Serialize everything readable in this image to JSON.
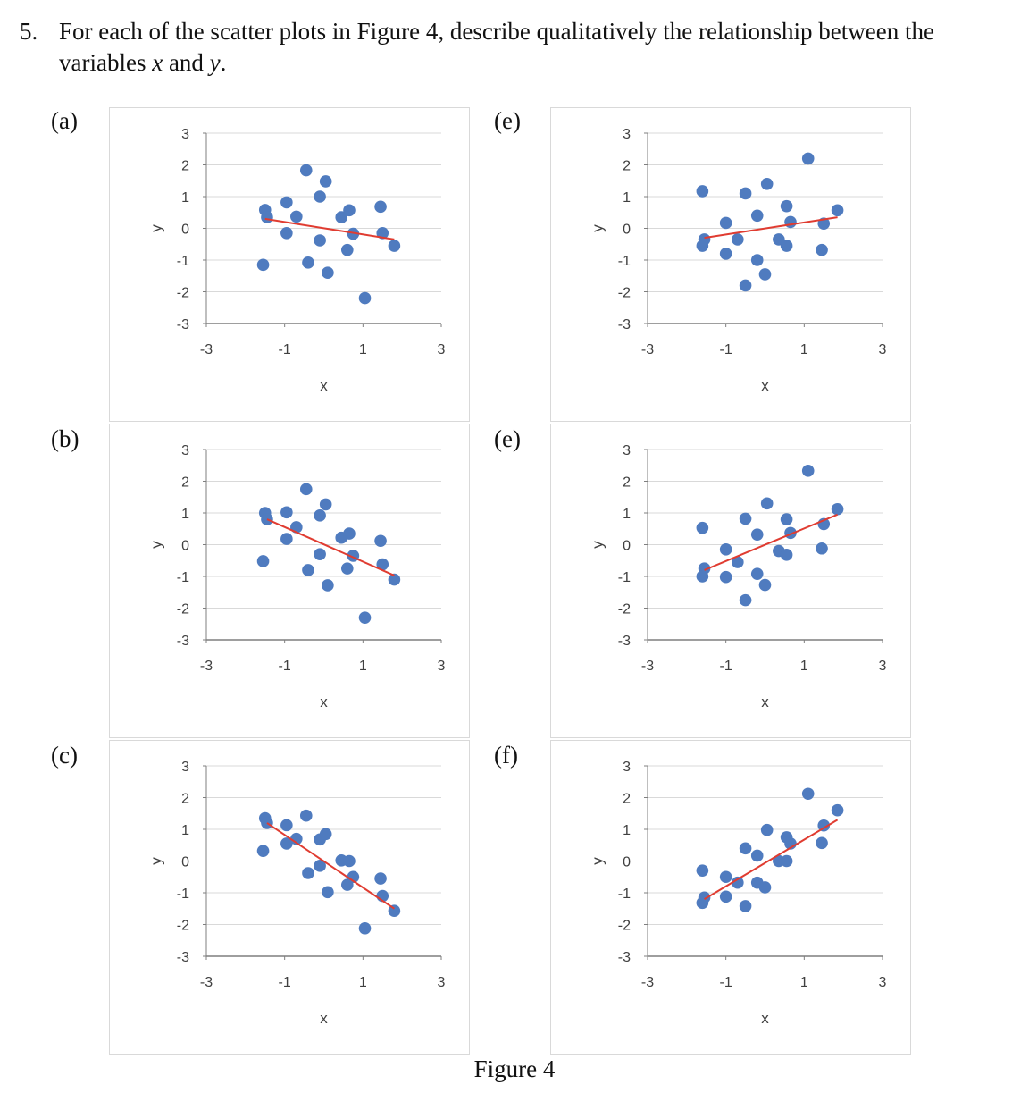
{
  "question": {
    "number": "5.",
    "text_before": "For each of the scatter plots in Figure 4, describe qualitatively the relationship between the variables ",
    "var_x": "x",
    "text_and": " and ",
    "var_y": "y",
    "text_end": "."
  },
  "caption": "Figure 4",
  "colors": {
    "point": "#4f7bbf",
    "trendline": "#e03c31",
    "grid": "#d9d9d9",
    "axis": "#7f7f7f",
    "tick_text": "#404040"
  },
  "chart_data": [
    {
      "panel_label": "(a)",
      "type": "scatter",
      "xlabel": "x",
      "ylabel": "y",
      "xlim": [
        -3,
        3
      ],
      "ylim": [
        -3,
        3
      ],
      "x_ticks": [
        -3,
        -1,
        1,
        3
      ],
      "y_ticks": [
        3,
        2,
        1,
        0,
        -1,
        -2,
        -3
      ],
      "grid": "horizontal",
      "trendline": {
        "type": "linear",
        "x": [
          -1.5,
          1.8
        ],
        "y": [
          0.3,
          -0.35
        ]
      },
      "points": [
        {
          "x": -1.55,
          "y": -1.15
        },
        {
          "x": -1.5,
          "y": 0.58
        },
        {
          "x": -1.45,
          "y": 0.35
        },
        {
          "x": -0.95,
          "y": 0.82
        },
        {
          "x": -0.95,
          "y": -0.15
        },
        {
          "x": -0.7,
          "y": 0.37
        },
        {
          "x": -0.45,
          "y": 1.83
        },
        {
          "x": -0.4,
          "y": -1.08
        },
        {
          "x": -0.1,
          "y": 1.0
        },
        {
          "x": -0.1,
          "y": -0.38
        },
        {
          "x": 0.05,
          "y": 1.48
        },
        {
          "x": 0.1,
          "y": -1.4
        },
        {
          "x": 0.45,
          "y": 0.35
        },
        {
          "x": 0.65,
          "y": 0.57
        },
        {
          "x": 0.6,
          "y": -0.68
        },
        {
          "x": 0.75,
          "y": -0.17
        },
        {
          "x": 1.05,
          "y": -2.2
        },
        {
          "x": 1.45,
          "y": 0.68
        },
        {
          "x": 1.5,
          "y": -0.15
        },
        {
          "x": 1.8,
          "y": -0.55
        }
      ]
    },
    {
      "panel_label": "(e)",
      "type": "scatter",
      "xlabel": "x",
      "ylabel": "y",
      "xlim": [
        -3,
        3
      ],
      "ylim": [
        -3,
        3
      ],
      "x_ticks": [
        -3,
        -1,
        1,
        3
      ],
      "y_ticks": [
        3,
        2,
        1,
        0,
        -1,
        -2,
        -3
      ],
      "grid": "horizontal",
      "trendline": {
        "type": "linear",
        "x": [
          -1.55,
          1.85
        ],
        "y": [
          -0.3,
          0.35
        ]
      },
      "points": [
        {
          "x": -1.6,
          "y": 1.17
        },
        {
          "x": -1.55,
          "y": -0.35
        },
        {
          "x": -1.6,
          "y": -0.55
        },
        {
          "x": -1.0,
          "y": 0.17
        },
        {
          "x": -1.0,
          "y": -0.8
        },
        {
          "x": -0.7,
          "y": -0.35
        },
        {
          "x": -0.5,
          "y": 1.1
        },
        {
          "x": -0.5,
          "y": -1.8
        },
        {
          "x": -0.2,
          "y": 0.4
        },
        {
          "x": -0.2,
          "y": -1.0
        },
        {
          "x": 0.05,
          "y": 1.4
        },
        {
          "x": 0.0,
          "y": -1.45
        },
        {
          "x": 0.35,
          "y": -0.35
        },
        {
          "x": 0.55,
          "y": 0.7
        },
        {
          "x": 0.55,
          "y": -0.55
        },
        {
          "x": 0.65,
          "y": 0.2
        },
        {
          "x": 1.1,
          "y": 2.2
        },
        {
          "x": 1.5,
          "y": 0.15
        },
        {
          "x": 1.45,
          "y": -0.68
        },
        {
          "x": 1.85,
          "y": 0.57
        }
      ]
    },
    {
      "panel_label": "(b)",
      "type": "scatter",
      "xlabel": "x",
      "ylabel": "y",
      "xlim": [
        -3,
        3
      ],
      "ylim": [
        -3,
        3
      ],
      "x_ticks": [
        -3,
        -1,
        1,
        3
      ],
      "y_ticks": [
        3,
        2,
        1,
        0,
        -1,
        -2,
        -3
      ],
      "grid": "horizontal",
      "trendline": {
        "type": "linear",
        "x": [
          -1.45,
          1.8
        ],
        "y": [
          0.8,
          -0.97
        ]
      },
      "points": [
        {
          "x": -1.55,
          "y": -0.52
        },
        {
          "x": -1.5,
          "y": 1.0
        },
        {
          "x": -1.45,
          "y": 0.8
        },
        {
          "x": -0.95,
          "y": 1.02
        },
        {
          "x": -0.95,
          "y": 0.18
        },
        {
          "x": -0.7,
          "y": 0.55
        },
        {
          "x": -0.45,
          "y": 1.75
        },
        {
          "x": -0.4,
          "y": -0.8
        },
        {
          "x": -0.1,
          "y": 0.92
        },
        {
          "x": -0.1,
          "y": -0.3
        },
        {
          "x": 0.05,
          "y": 1.27
        },
        {
          "x": 0.1,
          "y": -1.28
        },
        {
          "x": 0.45,
          "y": 0.22
        },
        {
          "x": 0.65,
          "y": 0.35
        },
        {
          "x": 0.6,
          "y": -0.75
        },
        {
          "x": 0.75,
          "y": -0.35
        },
        {
          "x": 1.05,
          "y": -2.3
        },
        {
          "x": 1.45,
          "y": 0.12
        },
        {
          "x": 1.5,
          "y": -0.62
        },
        {
          "x": 1.8,
          "y": -1.1
        }
      ]
    },
    {
      "panel_label": "(e)",
      "type": "scatter",
      "xlabel": "x",
      "ylabel": "y",
      "xlim": [
        -3,
        3
      ],
      "ylim": [
        -3,
        3
      ],
      "x_ticks": [
        -3,
        -1,
        1,
        3
      ],
      "y_ticks": [
        3,
        2,
        1,
        0,
        -1,
        -2,
        -3
      ],
      "grid": "horizontal",
      "trendline": {
        "type": "linear",
        "x": [
          -1.55,
          1.85
        ],
        "y": [
          -0.8,
          0.95
        ]
      },
      "points": [
        {
          "x": -1.6,
          "y": 0.53
        },
        {
          "x": -1.55,
          "y": -0.75
        },
        {
          "x": -1.6,
          "y": -1.0
        },
        {
          "x": -1.0,
          "y": -0.15
        },
        {
          "x": -1.0,
          "y": -1.02
        },
        {
          "x": -0.7,
          "y": -0.55
        },
        {
          "x": -0.5,
          "y": 0.82
        },
        {
          "x": -0.5,
          "y": -1.75
        },
        {
          "x": -0.2,
          "y": 0.32
        },
        {
          "x": -0.2,
          "y": -0.92
        },
        {
          "x": 0.05,
          "y": 1.3
        },
        {
          "x": 0.0,
          "y": -1.27
        },
        {
          "x": 0.35,
          "y": -0.2
        },
        {
          "x": 0.55,
          "y": 0.8
        },
        {
          "x": 0.55,
          "y": -0.32
        },
        {
          "x": 0.65,
          "y": 0.37
        },
        {
          "x": 1.1,
          "y": 2.33
        },
        {
          "x": 1.5,
          "y": 0.65
        },
        {
          "x": 1.45,
          "y": -0.12
        },
        {
          "x": 1.85,
          "y": 1.12
        }
      ]
    },
    {
      "panel_label": "(c)",
      "type": "scatter",
      "xlabel": "x",
      "ylabel": "y",
      "xlim": [
        -3,
        3
      ],
      "ylim": [
        -3,
        3
      ],
      "x_ticks": [
        -3,
        -1,
        1,
        3
      ],
      "y_ticks": [
        3,
        2,
        1,
        0,
        -1,
        -2,
        -3
      ],
      "grid": "horizontal",
      "trendline": {
        "type": "linear",
        "x": [
          -1.45,
          1.8
        ],
        "y": [
          1.2,
          -1.5
        ]
      },
      "points": [
        {
          "x": -1.55,
          "y": 0.32
        },
        {
          "x": -1.5,
          "y": 1.35
        },
        {
          "x": -1.45,
          "y": 1.2
        },
        {
          "x": -0.95,
          "y": 1.13
        },
        {
          "x": -0.95,
          "y": 0.55
        },
        {
          "x": -0.7,
          "y": 0.7
        },
        {
          "x": -0.45,
          "y": 1.43
        },
        {
          "x": -0.4,
          "y": -0.38
        },
        {
          "x": -0.1,
          "y": 0.68
        },
        {
          "x": -0.1,
          "y": -0.15
        },
        {
          "x": 0.05,
          "y": 0.85
        },
        {
          "x": 0.1,
          "y": -0.98
        },
        {
          "x": 0.45,
          "y": 0.02
        },
        {
          "x": 0.65,
          "y": 0.0
        },
        {
          "x": 0.6,
          "y": -0.75
        },
        {
          "x": 0.75,
          "y": -0.5
        },
        {
          "x": 1.05,
          "y": -2.12
        },
        {
          "x": 1.45,
          "y": -0.55
        },
        {
          "x": 1.5,
          "y": -1.1
        },
        {
          "x": 1.8,
          "y": -1.57
        }
      ]
    },
    {
      "panel_label": "(f)",
      "type": "scatter",
      "xlabel": "x",
      "ylabel": "y",
      "xlim": [
        -3,
        3
      ],
      "ylim": [
        -3,
        3
      ],
      "x_ticks": [
        -3,
        -1,
        1,
        3
      ],
      "y_ticks": [
        3,
        2,
        1,
        0,
        -1,
        -2,
        -3
      ],
      "grid": "horizontal",
      "trendline": {
        "type": "linear",
        "x": [
          -1.55,
          1.85
        ],
        "y": [
          -1.2,
          1.3
        ]
      },
      "points": [
        {
          "x": -1.6,
          "y": -0.3
        },
        {
          "x": -1.55,
          "y": -1.15
        },
        {
          "x": -1.6,
          "y": -1.32
        },
        {
          "x": -1.0,
          "y": -0.5
        },
        {
          "x": -1.0,
          "y": -1.12
        },
        {
          "x": -0.7,
          "y": -0.68
        },
        {
          "x": -0.5,
          "y": 0.4
        },
        {
          "x": -0.5,
          "y": -1.42
        },
        {
          "x": -0.2,
          "y": 0.17
        },
        {
          "x": -0.2,
          "y": -0.68
        },
        {
          "x": 0.05,
          "y": 0.98
        },
        {
          "x": 0.0,
          "y": -0.83
        },
        {
          "x": 0.35,
          "y": 0.0
        },
        {
          "x": 0.55,
          "y": 0.75
        },
        {
          "x": 0.55,
          "y": 0.0
        },
        {
          "x": 0.65,
          "y": 0.55
        },
        {
          "x": 1.1,
          "y": 2.12
        },
        {
          "x": 1.5,
          "y": 1.12
        },
        {
          "x": 1.45,
          "y": 0.57
        },
        {
          "x": 1.85,
          "y": 1.6
        }
      ]
    }
  ]
}
